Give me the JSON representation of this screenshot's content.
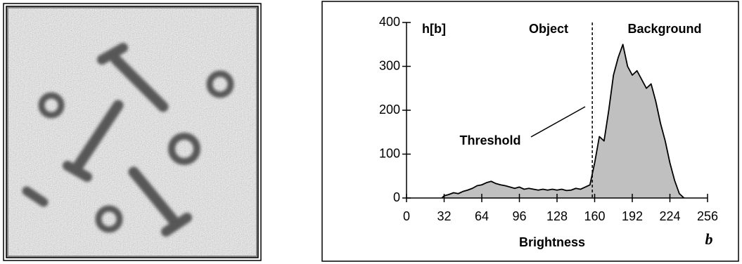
{
  "chart_data": {
    "type": "area",
    "ylabel": "h[b]",
    "xlabel": "Brightness",
    "x_symbol": "b",
    "annotations": [
      "Object",
      "Background",
      "Threshold"
    ],
    "threshold": 158,
    "x": [
      30,
      32,
      36,
      40,
      44,
      48,
      52,
      56,
      60,
      64,
      68,
      72,
      76,
      80,
      84,
      88,
      92,
      96,
      100,
      104,
      108,
      112,
      116,
      120,
      124,
      128,
      132,
      136,
      140,
      144,
      148,
      152,
      156,
      160,
      164,
      168,
      172,
      176,
      180,
      184,
      188,
      192,
      196,
      200,
      204,
      208,
      212,
      216,
      220,
      224,
      228,
      232,
      236
    ],
    "series": [
      {
        "color": "#c0c0c0",
        "line_color": "#000000",
        "values": [
          0,
          5,
          8,
          12,
          10,
          15,
          18,
          22,
          28,
          30,
          35,
          38,
          33,
          30,
          28,
          25,
          22,
          25,
          20,
          22,
          20,
          18,
          20,
          18,
          20,
          18,
          20,
          17,
          18,
          22,
          20,
          25,
          30,
          80,
          140,
          130,
          200,
          280,
          320,
          350,
          300,
          280,
          290,
          270,
          250,
          260,
          220,
          170,
          130,
          80,
          40,
          10,
          0
        ]
      }
    ],
    "xlim": [
      0,
      256
    ],
    "xticks": [
      0,
      32,
      64,
      96,
      128,
      160,
      192,
      224,
      256
    ],
    "ylim": [
      0,
      400
    ],
    "yticks": [
      0,
      100,
      200,
      300,
      400
    ],
    "grid": false
  }
}
